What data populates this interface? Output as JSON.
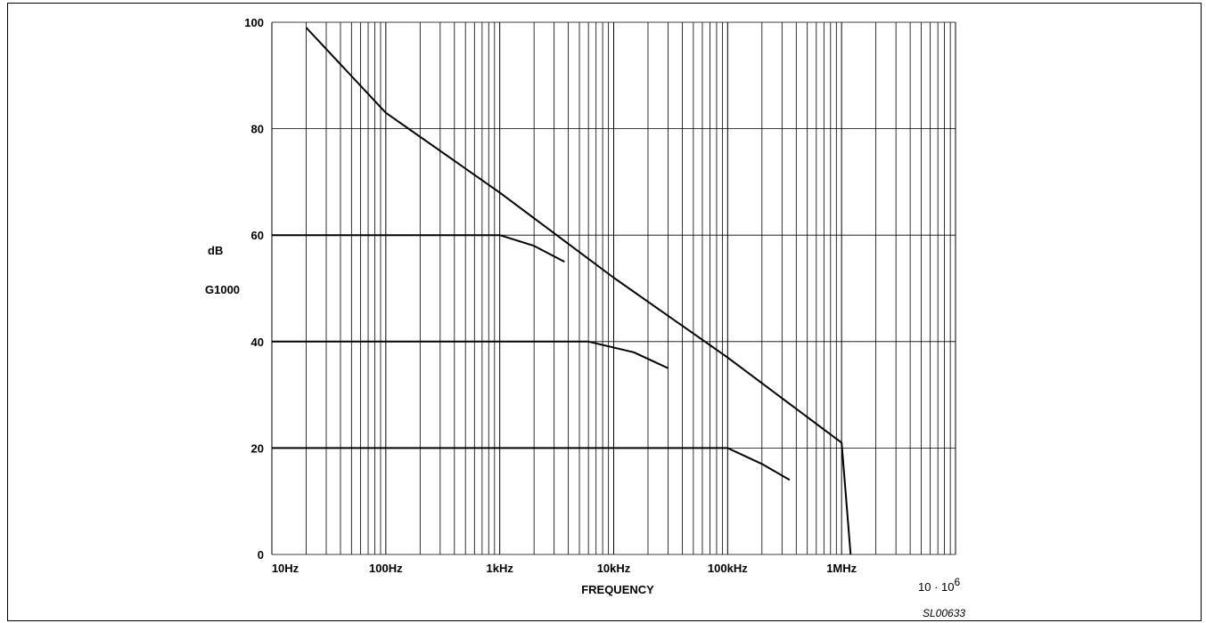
{
  "chart_data": {
    "type": "line",
    "ylabel": "dB",
    "ylabel2": "G1000",
    "xlabel": "FREQUENCY",
    "x_scale": "log",
    "xlim": [
      10,
      10000000
    ],
    "ylim": [
      0,
      100
    ],
    "y_ticks": [
      0,
      20,
      40,
      60,
      80,
      100
    ],
    "x_tick_labels": [
      "10Hz",
      "100Hz",
      "1kHz",
      "10kHz",
      "100kHz",
      "1MHz"
    ],
    "x_extra_label": "10 · 10",
    "x_extra_label_sup": "6",
    "figure_code": "SL00633",
    "grid": true,
    "series": [
      {
        "x": [
          20,
          100,
          1000,
          10000,
          100000,
          1000000,
          1200000
        ],
        "y": [
          99,
          83,
          68,
          52,
          37,
          21,
          0
        ]
      },
      {
        "x": [
          10,
          1000,
          2000,
          3700
        ],
        "y": [
          60,
          60,
          58,
          55
        ]
      },
      {
        "x": [
          10,
          6000,
          15000,
          30000
        ],
        "y": [
          40,
          40,
          38,
          35
        ]
      },
      {
        "x": [
          10,
          100000,
          200000,
          350000
        ],
        "y": [
          20,
          20,
          17,
          14
        ]
      }
    ]
  }
}
